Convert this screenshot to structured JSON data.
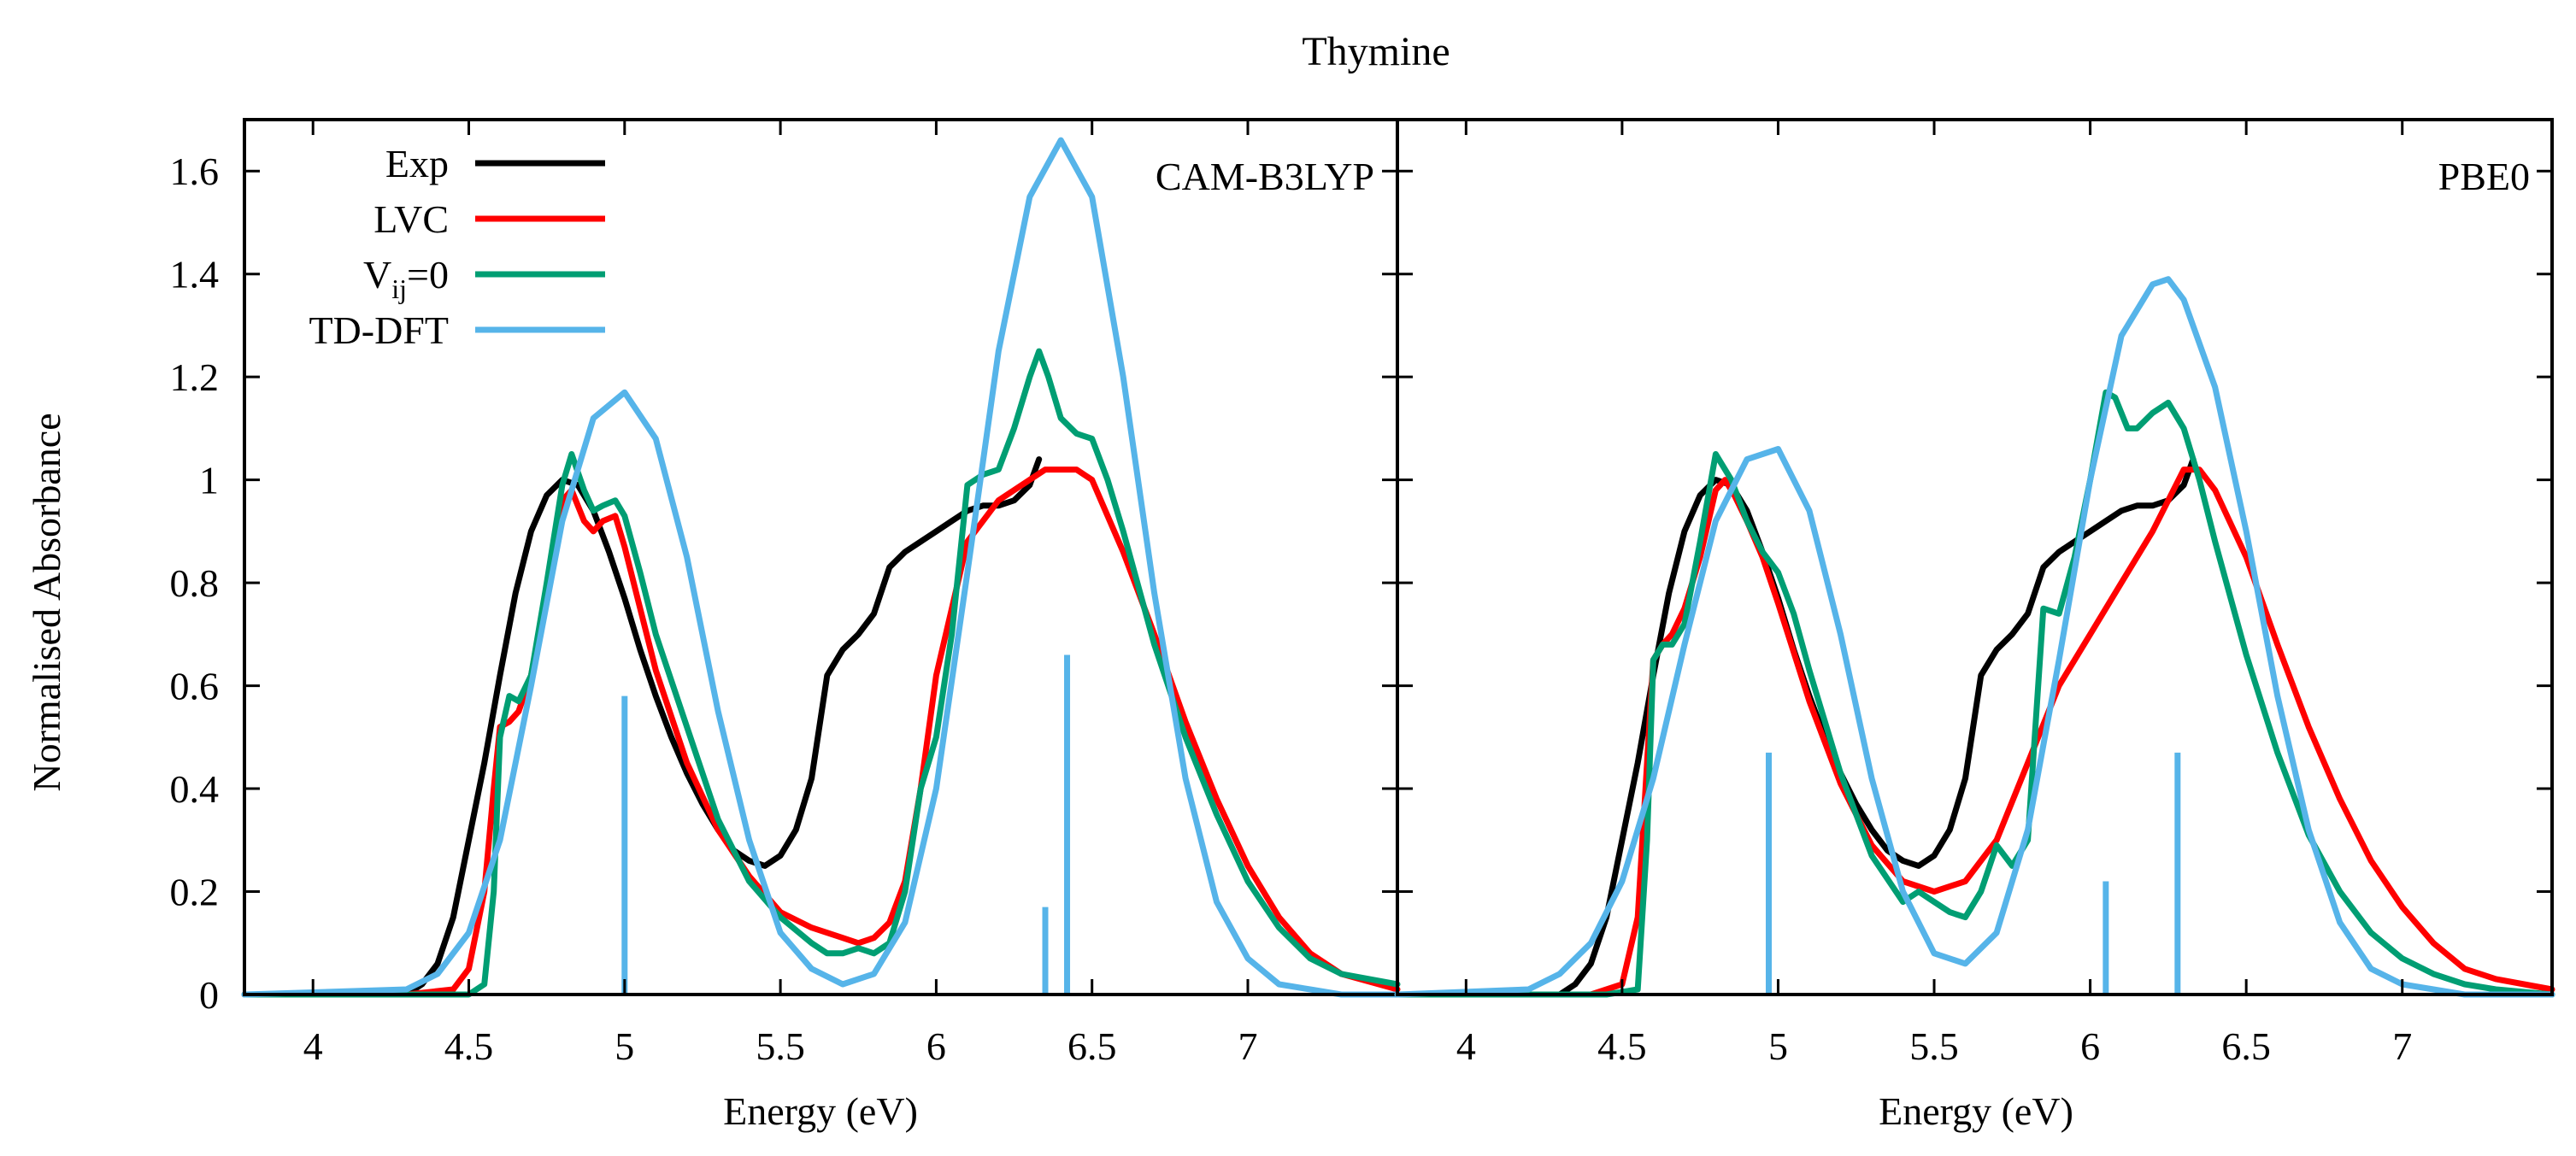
{
  "title": "Thymine",
  "chart_data": [
    {
      "type": "line",
      "panel_label": "CAM-B3LYP",
      "xlabel": "Energy (eV)",
      "ylabel": "Normalised Absorbance",
      "xlim": [
        3.78,
        7.48
      ],
      "ylim": [
        0,
        1.7
      ],
      "xticks": [
        4,
        4.5,
        5,
        5.5,
        6,
        6.5,
        7
      ],
      "xtick_labels": [
        "4",
        "4.5",
        "5",
        "5.5",
        "6",
        "6.5",
        "7"
      ],
      "yticks": [
        0,
        0.2,
        0.4,
        0.6,
        0.8,
        1,
        1.2,
        1.4,
        1.6
      ],
      "ytick_labels": [
        "0",
        "0.2",
        "0.4",
        "0.6",
        "0.8",
        "1",
        "1.2",
        "1.4",
        "1.6"
      ],
      "legend_position": "top-left",
      "series": [
        {
          "name": "Exp",
          "color": "#000000",
          "x": [
            4.3,
            4.35,
            4.4,
            4.45,
            4.5,
            4.55,
            4.6,
            4.65,
            4.7,
            4.75,
            4.8,
            4.85,
            4.9,
            4.95,
            5.0,
            5.05,
            5.1,
            5.15,
            5.2,
            5.25,
            5.3,
            5.35,
            5.4,
            5.45,
            5.5,
            5.55,
            5.6,
            5.65,
            5.7,
            5.75,
            5.8,
            5.85,
            5.9,
            5.95,
            6.0,
            6.05,
            6.1,
            6.15,
            6.2,
            6.25,
            6.3,
            6.33
          ],
          "y": [
            0.0,
            0.02,
            0.06,
            0.15,
            0.3,
            0.45,
            0.62,
            0.78,
            0.9,
            0.97,
            1.0,
            0.99,
            0.94,
            0.86,
            0.77,
            0.67,
            0.58,
            0.5,
            0.43,
            0.37,
            0.32,
            0.28,
            0.26,
            0.25,
            0.27,
            0.32,
            0.42,
            0.62,
            0.67,
            0.7,
            0.74,
            0.83,
            0.86,
            0.88,
            0.9,
            0.92,
            0.94,
            0.95,
            0.95,
            0.96,
            0.99,
            1.04
          ]
        },
        {
          "name": "LVC",
          "color": "#ff0000",
          "x": [
            3.78,
            4.3,
            4.45,
            4.5,
            4.55,
            4.58,
            4.6,
            4.63,
            4.66,
            4.7,
            4.75,
            4.8,
            4.83,
            4.87,
            4.9,
            4.93,
            4.97,
            5.0,
            5.05,
            5.1,
            5.2,
            5.3,
            5.4,
            5.5,
            5.6,
            5.7,
            5.75,
            5.8,
            5.85,
            5.9,
            5.95,
            6.0,
            6.1,
            6.2,
            6.3,
            6.35,
            6.4,
            6.45,
            6.5,
            6.55,
            6.6,
            6.7,
            6.8,
            6.9,
            7.0,
            7.1,
            7.2,
            7.3,
            7.48
          ],
          "y": [
            0.0,
            0.0,
            0.01,
            0.05,
            0.2,
            0.4,
            0.52,
            0.53,
            0.55,
            0.62,
            0.78,
            0.96,
            0.98,
            0.92,
            0.9,
            0.92,
            0.93,
            0.87,
            0.75,
            0.63,
            0.45,
            0.32,
            0.23,
            0.16,
            0.13,
            0.11,
            0.1,
            0.11,
            0.14,
            0.22,
            0.4,
            0.62,
            0.88,
            0.96,
            1.0,
            1.02,
            1.02,
            1.02,
            1.0,
            0.93,
            0.86,
            0.7,
            0.53,
            0.38,
            0.25,
            0.15,
            0.08,
            0.04,
            0.01
          ]
        },
        {
          "name": "V_ij=0",
          "color": "#009e73",
          "x": [
            3.78,
            4.4,
            4.5,
            4.55,
            4.58,
            4.6,
            4.63,
            4.66,
            4.7,
            4.75,
            4.8,
            4.83,
            4.87,
            4.9,
            4.93,
            4.97,
            5.0,
            5.05,
            5.1,
            5.2,
            5.3,
            5.4,
            5.5,
            5.6,
            5.65,
            5.7,
            5.75,
            5.8,
            5.85,
            5.9,
            5.95,
            6.0,
            6.05,
            6.1,
            6.15,
            6.2,
            6.25,
            6.3,
            6.33,
            6.36,
            6.4,
            6.45,
            6.5,
            6.55,
            6.6,
            6.7,
            6.8,
            6.9,
            7.0,
            7.1,
            7.2,
            7.3,
            7.48
          ],
          "y": [
            0.0,
            0.0,
            0.0,
            0.02,
            0.2,
            0.5,
            0.58,
            0.57,
            0.62,
            0.8,
            0.99,
            1.05,
            0.98,
            0.94,
            0.95,
            0.96,
            0.93,
            0.82,
            0.7,
            0.52,
            0.34,
            0.22,
            0.15,
            0.1,
            0.08,
            0.08,
            0.09,
            0.08,
            0.1,
            0.2,
            0.4,
            0.5,
            0.7,
            0.99,
            1.01,
            1.02,
            1.1,
            1.2,
            1.25,
            1.2,
            1.12,
            1.09,
            1.08,
            1.0,
            0.9,
            0.68,
            0.5,
            0.35,
            0.22,
            0.13,
            0.07,
            0.04,
            0.02
          ]
        },
        {
          "name": "TD-DFT",
          "color": "#56b4e9",
          "x": [
            3.78,
            4.3,
            4.4,
            4.5,
            4.6,
            4.7,
            4.8,
            4.9,
            5.0,
            5.1,
            5.2,
            5.3,
            5.4,
            5.5,
            5.6,
            5.7,
            5.8,
            5.9,
            6.0,
            6.1,
            6.2,
            6.3,
            6.4,
            6.5,
            6.6,
            6.7,
            6.8,
            6.9,
            7.0,
            7.1,
            7.2,
            7.3,
            7.48
          ],
          "y": [
            0.0,
            0.01,
            0.04,
            0.12,
            0.3,
            0.6,
            0.92,
            1.12,
            1.17,
            1.08,
            0.85,
            0.55,
            0.3,
            0.12,
            0.05,
            0.02,
            0.04,
            0.14,
            0.4,
            0.82,
            1.25,
            1.55,
            1.66,
            1.55,
            1.2,
            0.78,
            0.42,
            0.18,
            0.07,
            0.02,
            0.01,
            0.0,
            0.0
          ]
        }
      ],
      "sticks": {
        "name": "TD-DFT",
        "color": "#56b4e9",
        "x": [
          5.0,
          6.35,
          6.42
        ],
        "y": [
          0.58,
          0.17,
          0.66
        ]
      }
    },
    {
      "type": "line",
      "panel_label": "PBE0",
      "xlabel": "Energy (eV)",
      "ylabel": "",
      "xlim": [
        3.78,
        7.48
      ],
      "ylim": [
        0,
        1.7
      ],
      "xticks": [
        4,
        4.5,
        5,
        5.5,
        6,
        6.5,
        7
      ],
      "xtick_labels": [
        "4",
        "4.5",
        "5",
        "5.5",
        "6",
        "6.5",
        "7"
      ],
      "series": [
        {
          "name": "Exp",
          "color": "#000000",
          "x": [
            4.3,
            4.35,
            4.4,
            4.45,
            4.5,
            4.55,
            4.6,
            4.65,
            4.7,
            4.75,
            4.8,
            4.85,
            4.9,
            4.95,
            5.0,
            5.05,
            5.1,
            5.15,
            5.2,
            5.25,
            5.3,
            5.35,
            5.4,
            5.45,
            5.5,
            5.55,
            5.6,
            5.65,
            5.7,
            5.75,
            5.8,
            5.85,
            5.9,
            5.95,
            6.0,
            6.05,
            6.1,
            6.15,
            6.2,
            6.25,
            6.3,
            6.33
          ],
          "y": [
            0.0,
            0.02,
            0.06,
            0.15,
            0.3,
            0.45,
            0.62,
            0.78,
            0.9,
            0.97,
            1.0,
            0.99,
            0.94,
            0.86,
            0.77,
            0.67,
            0.58,
            0.5,
            0.43,
            0.37,
            0.32,
            0.28,
            0.26,
            0.25,
            0.27,
            0.32,
            0.42,
            0.62,
            0.67,
            0.7,
            0.74,
            0.83,
            0.86,
            0.88,
            0.9,
            0.92,
            0.94,
            0.95,
            0.95,
            0.96,
            0.99,
            1.04
          ]
        },
        {
          "name": "LVC",
          "color": "#ff0000",
          "x": [
            3.78,
            4.4,
            4.5,
            4.55,
            4.58,
            4.6,
            4.63,
            4.66,
            4.7,
            4.75,
            4.8,
            4.83,
            4.86,
            4.9,
            4.95,
            5.0,
            5.1,
            5.2,
            5.3,
            5.4,
            5.5,
            5.6,
            5.7,
            5.8,
            5.9,
            6.0,
            6.1,
            6.2,
            6.25,
            6.3,
            6.35,
            6.4,
            6.5,
            6.6,
            6.7,
            6.8,
            6.9,
            7.0,
            7.1,
            7.2,
            7.3,
            7.48
          ],
          "y": [
            0.0,
            0.0,
            0.02,
            0.15,
            0.45,
            0.65,
            0.68,
            0.7,
            0.75,
            0.85,
            0.98,
            1.0,
            0.97,
            0.92,
            0.85,
            0.76,
            0.57,
            0.41,
            0.29,
            0.22,
            0.2,
            0.22,
            0.3,
            0.45,
            0.6,
            0.7,
            0.8,
            0.9,
            0.96,
            1.02,
            1.02,
            0.98,
            0.85,
            0.68,
            0.52,
            0.38,
            0.26,
            0.17,
            0.1,
            0.05,
            0.03,
            0.01
          ]
        },
        {
          "name": "V_ij=0",
          "color": "#009e73",
          "x": [
            3.78,
            4.45,
            4.55,
            4.58,
            4.6,
            4.63,
            4.66,
            4.7,
            4.75,
            4.8,
            4.85,
            4.9,
            4.95,
            5.0,
            5.05,
            5.1,
            5.2,
            5.3,
            5.4,
            5.45,
            5.5,
            5.55,
            5.6,
            5.65,
            5.7,
            5.75,
            5.8,
            5.85,
            5.9,
            5.95,
            6.0,
            6.05,
            6.08,
            6.12,
            6.15,
            6.2,
            6.25,
            6.3,
            6.35,
            6.4,
            6.5,
            6.6,
            6.7,
            6.8,
            6.9,
            7.0,
            7.1,
            7.2,
            7.3,
            7.48
          ],
          "y": [
            0.0,
            0.0,
            0.01,
            0.3,
            0.65,
            0.68,
            0.68,
            0.72,
            0.88,
            1.05,
            1.0,
            0.92,
            0.86,
            0.82,
            0.74,
            0.63,
            0.43,
            0.27,
            0.18,
            0.2,
            0.18,
            0.16,
            0.15,
            0.2,
            0.29,
            0.25,
            0.3,
            0.75,
            0.74,
            0.85,
            1.0,
            1.17,
            1.16,
            1.1,
            1.1,
            1.13,
            1.15,
            1.1,
            1.0,
            0.88,
            0.66,
            0.47,
            0.31,
            0.2,
            0.12,
            0.07,
            0.04,
            0.02,
            0.01,
            0.0
          ]
        },
        {
          "name": "TD-DFT",
          "color": "#56b4e9",
          "x": [
            3.78,
            4.2,
            4.3,
            4.4,
            4.5,
            4.6,
            4.7,
            4.8,
            4.9,
            5.0,
            5.1,
            5.2,
            5.3,
            5.4,
            5.5,
            5.6,
            5.7,
            5.8,
            5.9,
            6.0,
            6.1,
            6.2,
            6.25,
            6.3,
            6.4,
            6.5,
            6.6,
            6.7,
            6.8,
            6.9,
            7.0,
            7.2,
            7.48
          ],
          "y": [
            0.0,
            0.01,
            0.04,
            0.1,
            0.22,
            0.42,
            0.68,
            0.92,
            1.04,
            1.06,
            0.94,
            0.7,
            0.42,
            0.2,
            0.08,
            0.06,
            0.12,
            0.32,
            0.65,
            1.0,
            1.28,
            1.38,
            1.39,
            1.35,
            1.18,
            0.9,
            0.58,
            0.32,
            0.14,
            0.05,
            0.02,
            0.0,
            0.0
          ]
        }
      ],
      "sticks": {
        "name": "TD-DFT",
        "color": "#56b4e9",
        "x": [
          4.97,
          6.05,
          6.28
        ],
        "y": [
          0.47,
          0.22,
          0.47
        ]
      }
    }
  ],
  "legend": {
    "entries": [
      {
        "label": "Exp",
        "color": "#000000"
      },
      {
        "label": "LVC",
        "color": "#ff0000"
      },
      {
        "label_main": "V",
        "label_sub": "ij",
        "label_tail": "=0",
        "color": "#009e73"
      },
      {
        "label": "TD-DFT",
        "color": "#56b4e9"
      }
    ]
  }
}
